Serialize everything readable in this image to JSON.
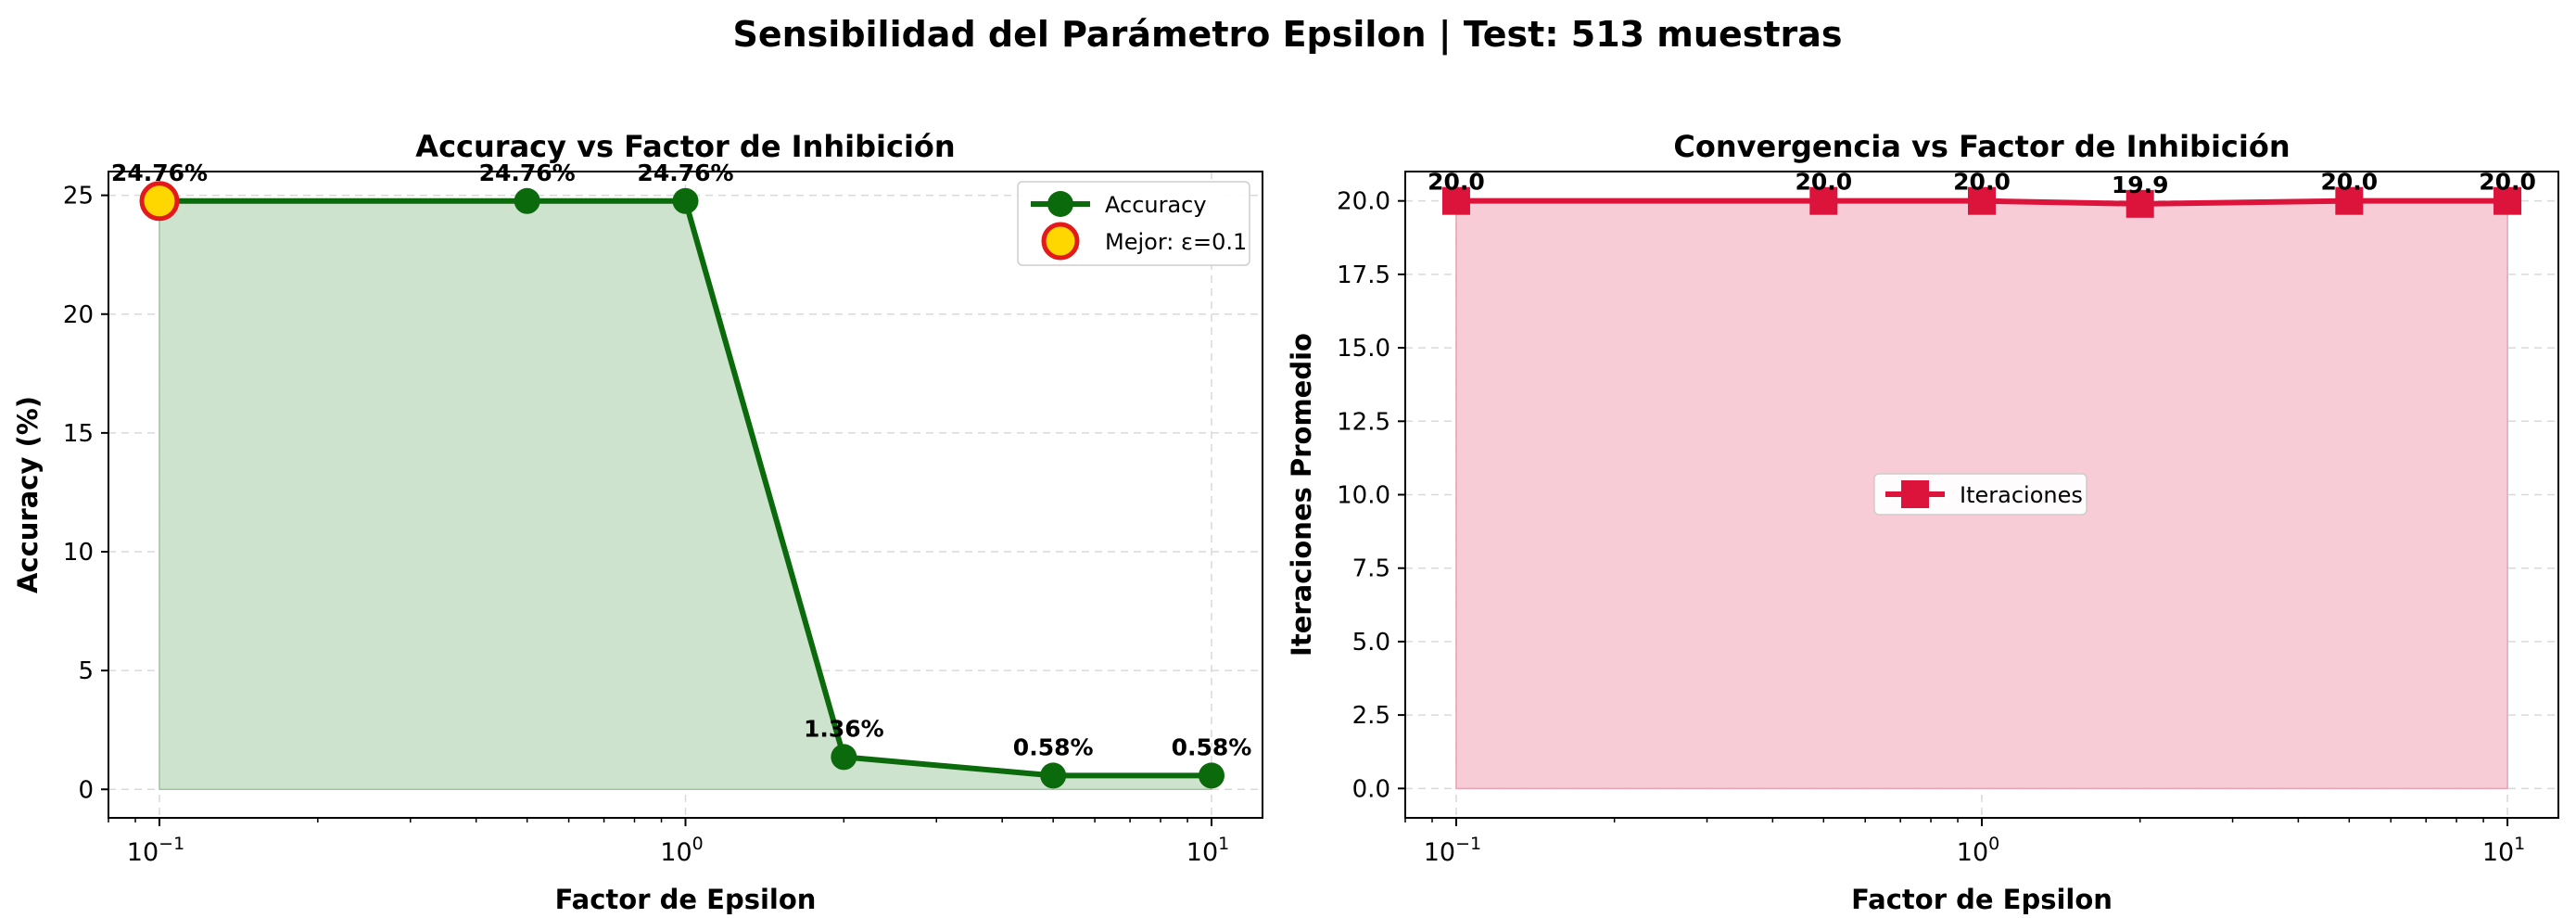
{
  "figure": {
    "suptitle": "Sensibilidad del Parámetro Epsilon | Test: 513 muestras"
  },
  "colors": {
    "accuracy_line": "#0b6a0b",
    "accuracy_fill": "#cde3cd",
    "best_marker_face": "#ffd700",
    "best_marker_edge": "#e31a1c",
    "iter_line": "#dc143c",
    "iter_fill": "#f7ccd6",
    "grid": "#d9d9d9"
  },
  "chart_data": [
    {
      "type": "line",
      "title": "Accuracy vs Factor de Inhibición",
      "xlabel": "Factor de Epsilon",
      "ylabel": "Accuracy (%)",
      "xscale": "log",
      "xlim": [
        0.08,
        12.5
      ],
      "ylim": [
        -1.2,
        26.0
      ],
      "x_tick_labels": [
        "10",
        "10",
        "10"
      ],
      "x_tick_exponents": [
        "−1",
        "0",
        "1"
      ],
      "x_ticks": [
        0.1,
        1,
        10
      ],
      "y_ticks": [
        0,
        5,
        10,
        15,
        20,
        25
      ],
      "y_tick_labels": [
        "0",
        "5",
        "10",
        "15",
        "20",
        "25"
      ],
      "grid": true,
      "fill_under": true,
      "series": [
        {
          "name": "Accuracy",
          "x": [
            0.1,
            0.5,
            1,
            2,
            5,
            10
          ],
          "y": [
            24.76,
            24.76,
            24.76,
            1.36,
            0.58,
            0.58
          ],
          "labels": [
            "24.76%",
            "24.76%",
            "24.76%",
            "1.36%",
            "0.58%",
            "0.58%"
          ],
          "marker": "circle"
        }
      ],
      "highlight": {
        "name": "Mejor: ε=0.1",
        "x": 0.1,
        "y": 24.76
      },
      "legend_position": "top-right"
    },
    {
      "type": "line",
      "title": "Convergencia vs Factor de Inhibición",
      "xlabel": "Factor de Epsilon",
      "ylabel": "Iteraciones Promedio",
      "xscale": "log",
      "xlim": [
        0.08,
        12.5
      ],
      "ylim": [
        -1.0,
        21.0
      ],
      "x_tick_labels": [
        "10",
        "10",
        "10"
      ],
      "x_tick_exponents": [
        "−1",
        "0",
        "1"
      ],
      "x_ticks": [
        0.1,
        1,
        10
      ],
      "y_ticks": [
        0,
        2.5,
        5,
        7.5,
        10,
        12.5,
        15,
        17.5,
        20
      ],
      "y_tick_labels": [
        "0.0",
        "2.5",
        "5.0",
        "7.5",
        "10.0",
        "12.5",
        "15.0",
        "17.5",
        "20.0"
      ],
      "grid": true,
      "fill_under": true,
      "series": [
        {
          "name": "Iteraciones",
          "x": [
            0.1,
            0.5,
            1,
            2,
            5,
            10
          ],
          "y": [
            20.0,
            20.0,
            20.0,
            19.9,
            20.0,
            20.0
          ],
          "labels": [
            "20.0",
            "20.0",
            "20.0",
            "19.9",
            "20.0",
            "20.0"
          ],
          "marker": "square"
        }
      ],
      "legend_position": "center"
    }
  ]
}
